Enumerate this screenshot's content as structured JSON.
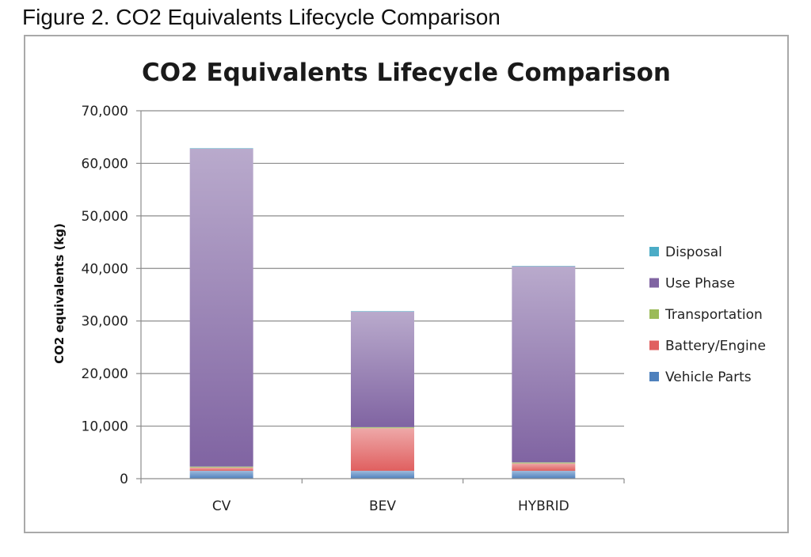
{
  "caption": "Figure 2. CO2 Equivalents Lifecycle Comparison",
  "chart_data": {
    "type": "bar",
    "stacked": true,
    "title": "CO2 Equivalents Lifecycle Comparison",
    "xlabel": "",
    "ylabel": "CO2 equivalents (kg)",
    "ylim": [
      0,
      70000
    ],
    "yticks": [
      0,
      10000,
      20000,
      30000,
      40000,
      50000,
      60000,
      70000
    ],
    "ytick_labels": [
      "0",
      "10,000",
      "20,000",
      "30,000",
      "40,000",
      "50,000",
      "60,000",
      "70,000"
    ],
    "grid": true,
    "legend_position": "right",
    "categories": [
      "CV",
      "BEV",
      "HYBRID"
    ],
    "series": [
      {
        "name": "Vehicle Parts",
        "color": "#4f81bd",
        "values": [
          1500,
          1500,
          1500
        ]
      },
      {
        "name": "Battery/Engine",
        "color": "#e06060",
        "values": [
          600,
          8100,
          1400
        ]
      },
      {
        "name": "Transportation",
        "color": "#9bbb59",
        "values": [
          200,
          200,
          200
        ]
      },
      {
        "name": "Use Phase",
        "color": "#8064a2",
        "values": [
          60500,
          22000,
          37300
        ]
      },
      {
        "name": "Disposal",
        "color": "#4bacc6",
        "values": [
          100,
          100,
          100
        ]
      }
    ]
  }
}
